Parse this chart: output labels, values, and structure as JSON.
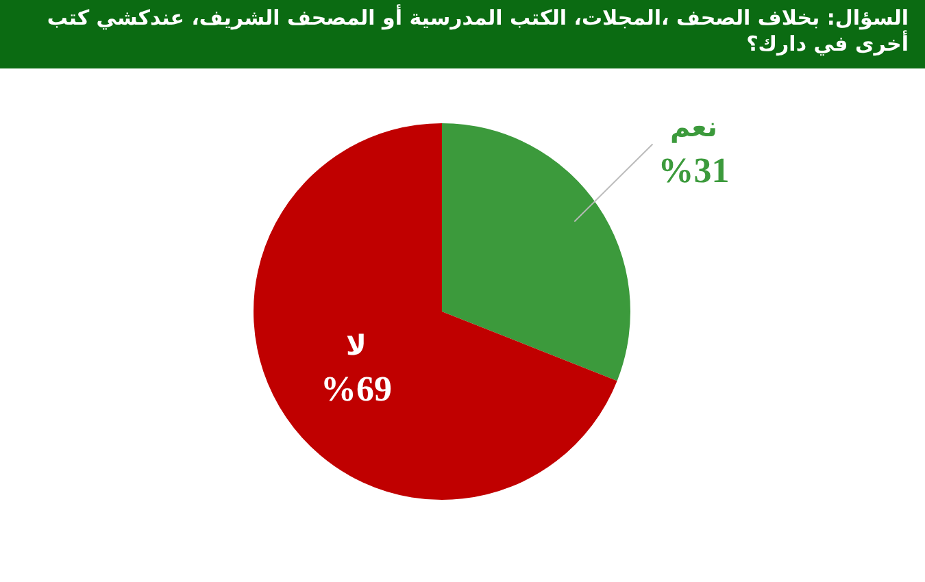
{
  "chart_data": {
    "type": "pie",
    "title": "السؤال: بخلاف الصحف ،المجلات، الكتب المدرسية أو المصحف الشريف، عندكشي كتب أخرى في دارك؟",
    "categories": [
      "نعم",
      "لا"
    ],
    "values": [
      31,
      69
    ],
    "value_labels": [
      "%31",
      "%69"
    ],
    "colors": [
      "#3c9a3c",
      "#c00000"
    ],
    "legend": false
  }
}
